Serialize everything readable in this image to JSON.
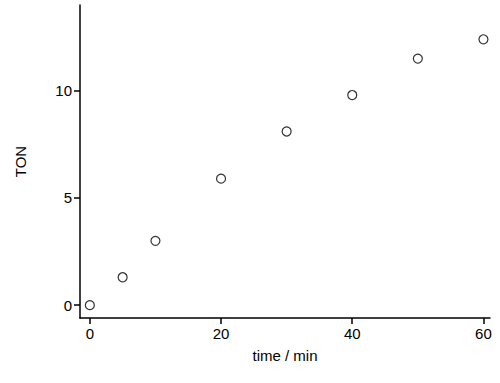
{
  "chart_data": {
    "type": "scatter",
    "x_label": "time / min",
    "y_label": "TON",
    "x": [
      0,
      5,
      10,
      20,
      30,
      40,
      50,
      60
    ],
    "values": [
      0,
      1.3,
      3.0,
      5.9,
      8.1,
      9.8,
      11.5,
      12.4
    ],
    "color": "#000000",
    "marker": "open_circle",
    "xlim": [
      -1.5,
      61
    ],
    "xticks": [
      0,
      20,
      40,
      60
    ],
    "ylim": [
      -0.6,
      14
    ],
    "yticks": [
      0,
      5,
      10
    ],
    "grid": false
  }
}
